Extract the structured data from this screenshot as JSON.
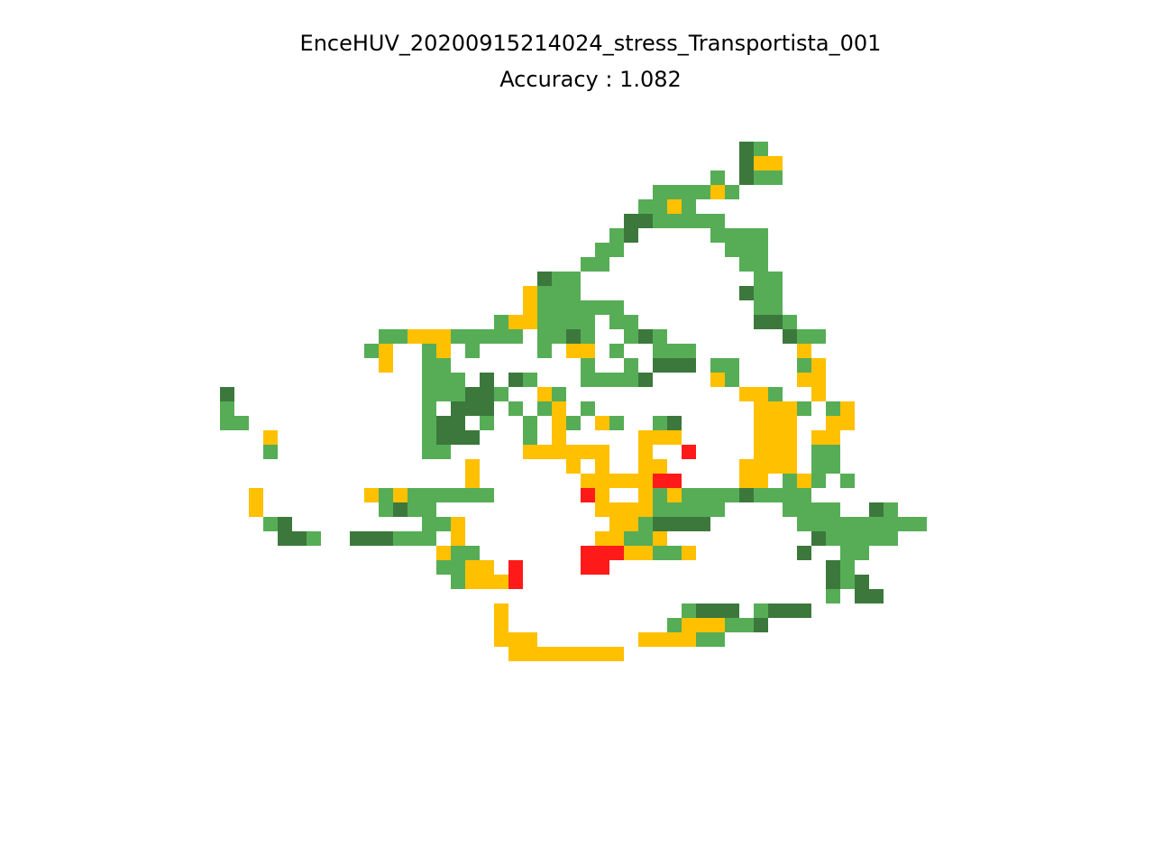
{
  "figure": {
    "title_line1": "EnceHUV_20200915214024_stress_Transportista_001",
    "title_line2": "Accuracy : 1.082"
  },
  "chart_data": {
    "type": "heatmap",
    "title": "EnceHUV_20200915214024_stress_Transportista_001\nAccuracy : 1.082",
    "grid": false,
    "axes": "off",
    "colors": {
      "G": "#56ad56",
      "D": "#3c783c",
      "Y": "#ffc000",
      "R": "#ff1a1a"
    },
    "rows": [
      "....................................DG.....",
      "....................................DYY....",
      "..................................G.DGG....",
      "..............................GGGGYG.......",
      ".............................GGYG..........",
      "............................DDGGGGG........",
      "...........................GD.....GGGG.....",
      "..........................GG.......GGG.....",
      ".........................GG.........GG.....",
      "......................DGG............GG....",
      ".....................YGGG...........DGG....",
      ".....................YGGGGGG.........GG....",
      "...................GYYGGGG.GG........DDG...",
      "...........GGYYYGGGGG.GGDG..GDG........DGG.",
      "..........GY..GY.G....G.YY.G..GGG.......Y..",
      "...........Y..GG.........G..G.DDD.GG....GY.",
      "..............GGG.D.DG...GGGGD....YG....YY.",
      "D.............GGGDDG..YG............YYG..Y.",
      "G.............G.DDD.G.GY.G...........YYYG.GY",
      "GG............GDD.G..G.YG.YG..GD.....YYY..YY",
      "...Y..........GDDD...G.Y.....YYY.....YYY.YY.",
      "...G..........GG.....YYYYYY..Y..R....YYY.GG.",
      ".................Y......Y.Y..YY.....YYYY.GG.",
      ".................Y.......YYYYYRR....YY.GYG.G.",
      "..Y.......YGYGGGGGG......RY..YGYGGGGDGGGG..",
      "..Y........GDGG...........YYYYGGGGG....GGGG..DG",
      "...GD.........GGY..........YYGDDDD......GGGGGGGGG",
      "....DDG..DDDGGG.Y.........YYGGY..........DGGGGG",
      "...............YGG.......RRRYYGGY.......D..GG..",
      "...............GGYY.R....RR...............DG...",
      "................GYYYR.....................DGD..",
      "..........................................G.DD...",
      "...................Y............GDDD.GDDD......",
      "...................Y...........GYYYGGD.........",
      "...................YYY.......YYYYGG............",
      "....................YYYYYYYY..................."
    ]
  }
}
